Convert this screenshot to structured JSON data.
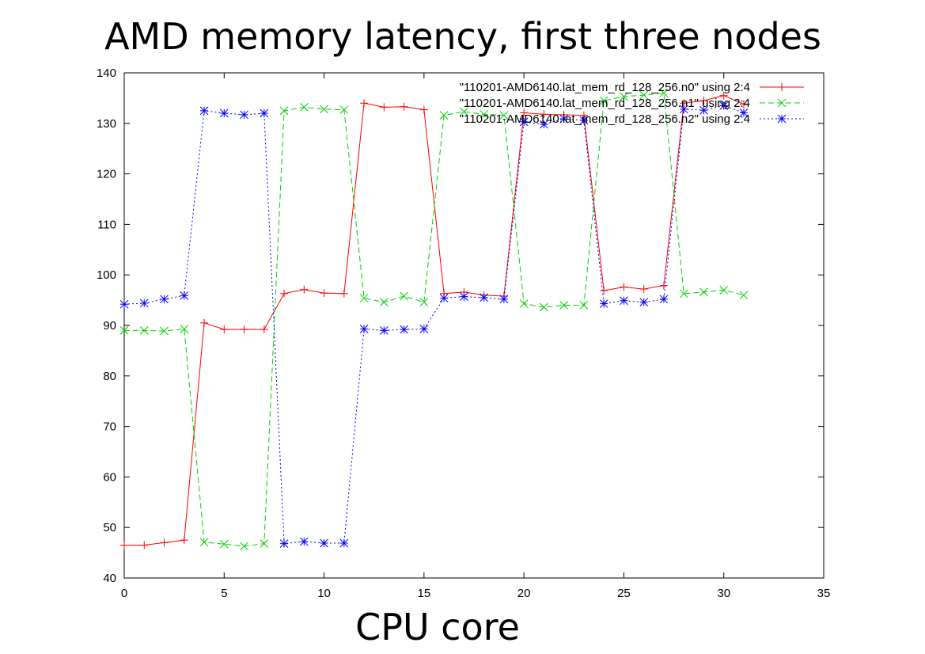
{
  "chart_data": {
    "type": "line",
    "title": "AMD memory latency, first three nodes",
    "xlabel": "CPU core",
    "ylabel": "",
    "xlim": [
      0,
      35
    ],
    "ylim": [
      40,
      140
    ],
    "xticks": [
      0,
      5,
      10,
      15,
      20,
      25,
      30,
      35
    ],
    "yticks": [
      40,
      50,
      60,
      70,
      80,
      90,
      100,
      110,
      120,
      130,
      140
    ],
    "grid": false,
    "legend_position": "top-right",
    "x": [
      0,
      1,
      2,
      3,
      4,
      5,
      6,
      7,
      8,
      9,
      10,
      11,
      12,
      13,
      14,
      15,
      16,
      17,
      18,
      19,
      20,
      21,
      22,
      23,
      24,
      25,
      26,
      27,
      28,
      29,
      30,
      31
    ],
    "series": [
      {
        "name": "\"110201-AMD6140.lat_mem_rd_128_256.n0\" using 2:4",
        "color": "#ff0000",
        "dash": "solid",
        "marker": "plus",
        "values": [
          46.5,
          46.5,
          47.0,
          47.5,
          90.5,
          89.2,
          89.2,
          89.2,
          96.3,
          97.1,
          96.4,
          96.3,
          134.0,
          133.2,
          133.3,
          132.7,
          96.3,
          96.6,
          96.0,
          95.8,
          132.1,
          131.8,
          131.7,
          131.6,
          96.9,
          97.6,
          97.2,
          97.9,
          134.0,
          134.5,
          135.5,
          133.8
        ]
      },
      {
        "name": "\"110201-AMD6140.lat_mem_rd_128_256.n1\" using 2:4",
        "color": "#00d000",
        "dash": "dashed",
        "marker": "x",
        "values": [
          89.0,
          89.0,
          88.9,
          89.3,
          47.1,
          46.7,
          46.3,
          46.8,
          132.5,
          133.2,
          132.8,
          132.7,
          95.4,
          94.6,
          95.8,
          94.6,
          131.6,
          132.3,
          131.8,
          131.6,
          94.3,
          93.6,
          94.0,
          94.0,
          134.5,
          135.3,
          135.6,
          136.0,
          96.3,
          96.6,
          97.0,
          96.0
        ]
      },
      {
        "name": "\"110201-AMD6140.lat_mem_rd_128_256.n2\" using 2:4",
        "color": "#0000ff",
        "dash": "dotted",
        "marker": "star",
        "values": [
          94.2,
          94.4,
          95.2,
          95.9,
          132.5,
          132.0,
          131.7,
          132.0,
          46.8,
          47.2,
          46.9,
          46.9,
          89.3,
          89.0,
          89.2,
          89.3,
          95.4,
          95.7,
          95.5,
          95.2,
          130.3,
          129.8,
          130.9,
          130.6,
          94.3,
          94.9,
          94.6,
          95.2,
          132.8,
          132.6,
          133.5,
          132.1
        ]
      }
    ]
  }
}
